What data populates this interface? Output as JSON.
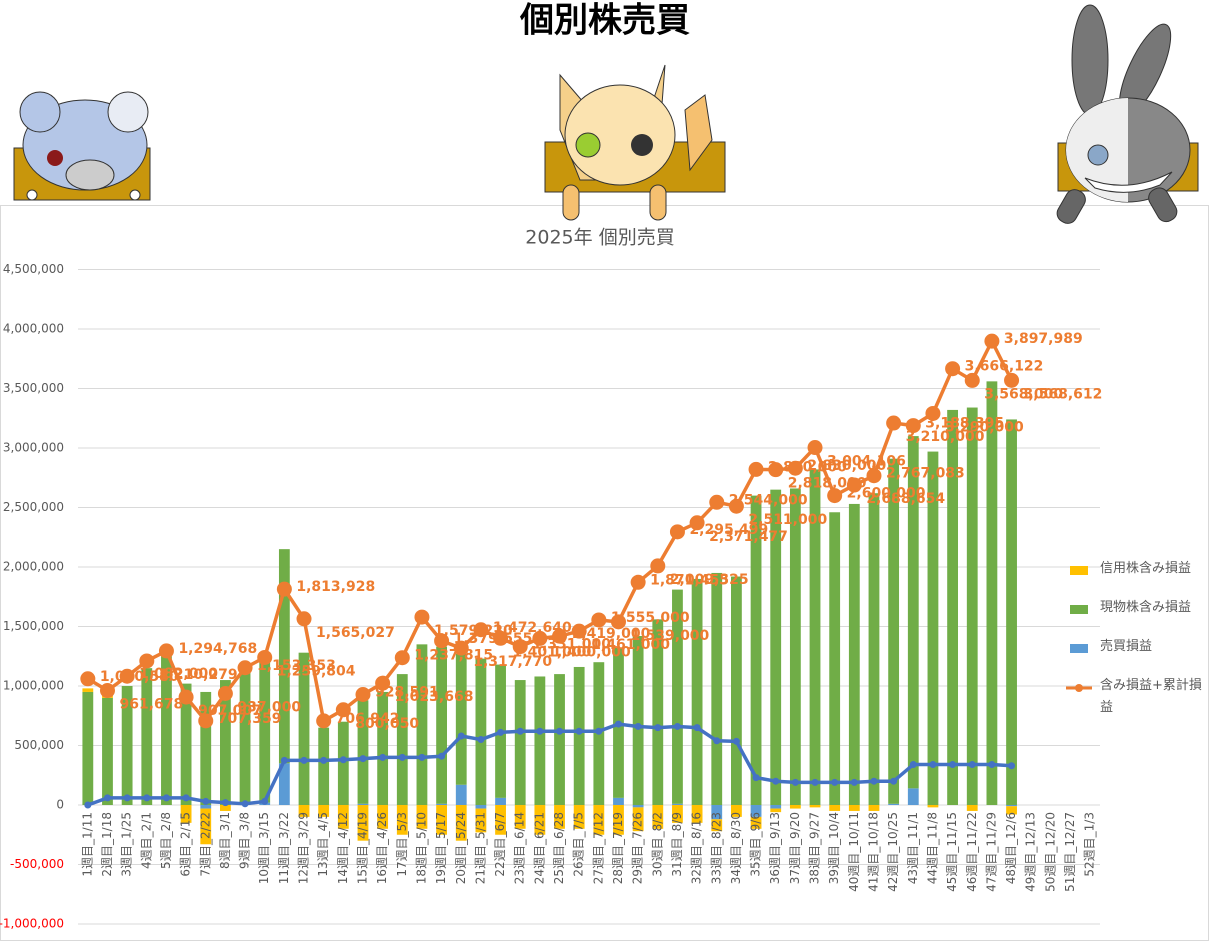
{
  "title": "個別株売買",
  "chart_data": {
    "type": "bar",
    "stacked": true,
    "title": "2025年 個別売買",
    "categories": [
      "1週目_1/11",
      "2週目_1/18",
      "3週目_1/25",
      "4週目_2/1",
      "5週目_2/8",
      "6週目_2/15",
      "7週目_2/22",
      "8週目_3/1",
      "9週目_3/8",
      "10週目_3/15",
      "11週目_3/22",
      "12週目_3/29",
      "13週目_4/5",
      "14週目_4/12",
      "15週目_4/19",
      "16週目_4/26",
      "17週目_5/3",
      "18週目_5/10",
      "19週目_5/17",
      "20週目_5/24",
      "21週目_5/31",
      "22週目_6/7",
      "23週目_6/14",
      "24週目_6/21",
      "25週目_6/28",
      "26週目_7/5",
      "27週目_7/12",
      "28週目_7/19",
      "29週目_7/26",
      "30週目_8/2",
      "31週目_8/9",
      "32週目_8/16",
      "33週目_8/23",
      "34週目_8/30",
      "35週目_9/6",
      "36週目_9/13",
      "37週目_9/20",
      "38週目_9/27",
      "39週目_10/4",
      "40週目_10/11",
      "41週目_10/18",
      "42週目_10/25",
      "43週目_11/1",
      "44週目_11/8",
      "45週目_11/15",
      "46週目_11/22",
      "47週目_11/29",
      "48週目_12/6",
      "49週目_12/13",
      "50週目_12/20",
      "51週目_12/27",
      "52週目_1/3"
    ],
    "series": [
      {
        "name": "売買損益",
        "type": "bar",
        "color": "#5b9bd5",
        "values": [
          0,
          0,
          0,
          0,
          0,
          0,
          -30000,
          0,
          0,
          20000,
          350000,
          0,
          0,
          0,
          10000,
          0,
          0,
          0,
          10000,
          170000,
          -30000,
          60000,
          0,
          0,
          0,
          0,
          0,
          60000,
          -20000,
          0,
          10000,
          0,
          -120000,
          0,
          -100000,
          -30000,
          0,
          0,
          0,
          0,
          0,
          10000,
          140000,
          0,
          0,
          0,
          0,
          -10000,
          null,
          null,
          null,
          null
        ]
      },
      {
        "name": "現物株含み損益",
        "type": "bar",
        "color": "#70ad47",
        "values": [
          950000,
          900000,
          1000000,
          1150000,
          1250000,
          1020000,
          950000,
          1050000,
          1150000,
          1200000,
          1800000,
          1280000,
          650000,
          700000,
          870000,
          950000,
          1100000,
          1350000,
          1320000,
          1100000,
          1230000,
          1120000,
          1050000,
          1080000,
          1100000,
          1160000,
          1200000,
          1260000,
          1420000,
          1560000,
          1800000,
          1900000,
          1950000,
          1920000,
          2600000,
          2650000,
          2660000,
          2820000,
          2460000,
          2530000,
          2620000,
          2900000,
          2960000,
          2970000,
          3320000,
          3340000,
          3560000,
          3240000,
          null,
          null,
          null,
          null
        ]
      },
      {
        "name": "信用株含み損益",
        "type": "bar",
        "color": "#ffc000",
        "values": [
          30000,
          20000,
          0,
          0,
          50000,
          -150000,
          -300000,
          -50000,
          0,
          0,
          0,
          -100000,
          -100000,
          -200000,
          -300000,
          -200000,
          -250000,
          -200000,
          -250000,
          -300000,
          -200000,
          -250000,
          -200000,
          -250000,
          -200000,
          -200000,
          -250000,
          -250000,
          -200000,
          -200000,
          -150000,
          -150000,
          -100000,
          -100000,
          -100000,
          -30000,
          -30000,
          -20000,
          -50000,
          -50000,
          -50000,
          0,
          0,
          -20000,
          0,
          -50000,
          0,
          -70000,
          null,
          null,
          null,
          null
        ]
      },
      {
        "name": "含み損益+累計損益",
        "type": "line",
        "color": "#ed7d31",
        "values": [
          1060580,
          961678,
          1082000,
          1210279,
          1294768,
          907007,
          707359,
          937000,
          1153353,
          1239804,
          1813928,
          1565027,
          706942,
          800050,
          928591,
          1023668,
          1237815,
          1579220,
          1379555,
          1317770,
          1472640,
          1401000,
          1331000,
          1400000,
          1419000,
          1461000,
          1555000,
          1539000,
          1871455,
          2009325,
          2295499,
          2371477,
          2544000,
          2511000,
          2820000,
          2818000,
          2830000,
          3004106,
          2600000,
          2688654,
          2767083,
          3210000,
          3188395,
          3290000,
          3666122,
          3568000,
          3897989,
          3568612,
          null,
          null,
          null,
          null
        ],
        "value_labels": [
          "1,060,580",
          "961,678",
          "1,082,000",
          "1,210,279",
          "1,294,768",
          "907,007",
          "707,359",
          "937,000",
          "1,153,353",
          "1,239,804",
          "1,813,928",
          "1,565,027",
          "706,942",
          "800,050",
          "928,591",
          "1,023,668",
          "1,237,815",
          "1,579,220",
          "1,379,555",
          "1,317,770",
          "1,472,640",
          "1,401,000",
          "1,331,000",
          "1,400,000",
          "1,419,000",
          "1,461,000",
          "1,555,000",
          "1,539,000",
          "1,871,455",
          "2,009,325",
          "2,295,499",
          "2,371,477",
          "2,544,000",
          "2,511,000",
          "2,820,000",
          "2,818,000",
          "2,830,000",
          "3,004,106",
          "2,600,000",
          "2,688,654",
          "2,767,083",
          "3,210,000",
          "3,188,395",
          "3,290,000",
          "3,666,122",
          "3,568,000",
          "3,897,989",
          "3,568,612",
          null,
          null,
          null,
          null
        ]
      },
      {
        "type": "line",
        "color": "#4472c4",
        "values": [
          0,
          60000,
          60000,
          60000,
          60000,
          60000,
          30000,
          20000,
          10000,
          30000,
          375000,
          375000,
          375000,
          380000,
          390000,
          400000,
          400000,
          400000,
          410000,
          580000,
          550000,
          610000,
          620000,
          620000,
          620000,
          620000,
          620000,
          680000,
          660000,
          650000,
          660000,
          650000,
          540000,
          535000,
          230000,
          200000,
          190000,
          190000,
          190000,
          190000,
          200000,
          200000,
          340000,
          340000,
          340000,
          340000,
          340000,
          330000,
          null,
          null,
          null,
          null
        ]
      }
    ],
    "ylim": [
      -1000000,
      4500000
    ],
    "yticks": [
      {
        "value": -1000000,
        "label": "-1,000,000"
      },
      {
        "value": -500000,
        "label": "-500,000"
      },
      0,
      {
        "value": 500000,
        "label": "500,000"
      },
      {
        "value": 1000000,
        "label": "1,000,000"
      },
      {
        "value": 1500000,
        "label": "1,500,000"
      },
      {
        "value": 2000000,
        "label": "2,000,000"
      },
      {
        "value": 2500000,
        "label": "2,500,000"
      },
      {
        "value": 3000000,
        "label": "3,000,000"
      },
      {
        "value": 3500000,
        "label": "3,500,000"
      },
      {
        "value": 4000000,
        "label": "4,000,000"
      },
      {
        "value": 4500000,
        "label": "4,500,000"
      }
    ],
    "grid": true,
    "legend": "right"
  }
}
